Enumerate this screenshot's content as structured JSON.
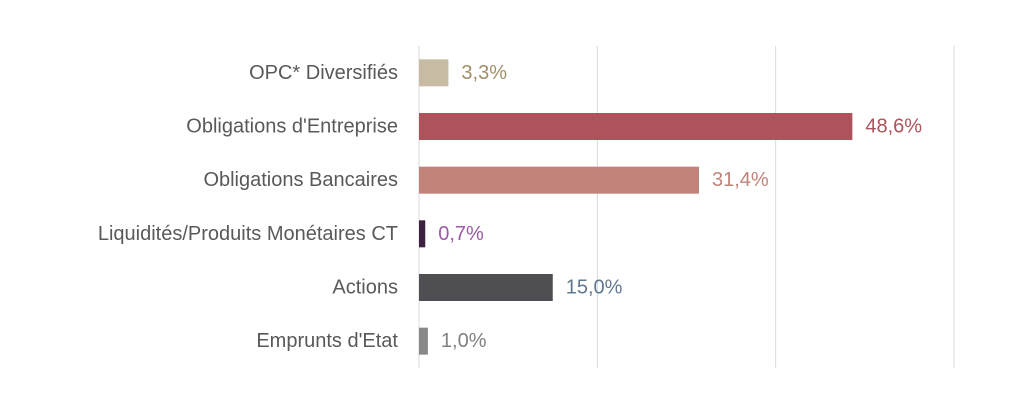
{
  "chart_data": {
    "type": "bar",
    "orientation": "horizontal",
    "categories": [
      "OPC* Diversifiés",
      "Obligations d'Entreprise",
      "Obligations Bancaires",
      "Liquidités/Produits Monétaires CT",
      "Actions",
      "Emprunts d'Etat"
    ],
    "values": [
      3.3,
      48.6,
      31.4,
      0.7,
      15.0,
      1.0
    ],
    "value_labels": [
      "3,3%",
      "48,6%",
      "31,4%",
      "0,7%",
      "15,0%",
      "1,0%"
    ],
    "bar_colors": [
      "#c8bba4",
      "#ae525b",
      "#c0837a",
      "#3d1f3f",
      "#4f4f53",
      "#888888"
    ],
    "label_colors": [
      "#a08f69",
      "#ae525b",
      "#c0837a",
      "#9c5aa6",
      "#61788f",
      "#808080"
    ],
    "xlim": [
      0,
      60
    ],
    "gridlines": [
      0,
      20,
      40,
      60
    ],
    "grid": true,
    "legend": false,
    "title": "",
    "xlabel": "",
    "ylabel": ""
  }
}
